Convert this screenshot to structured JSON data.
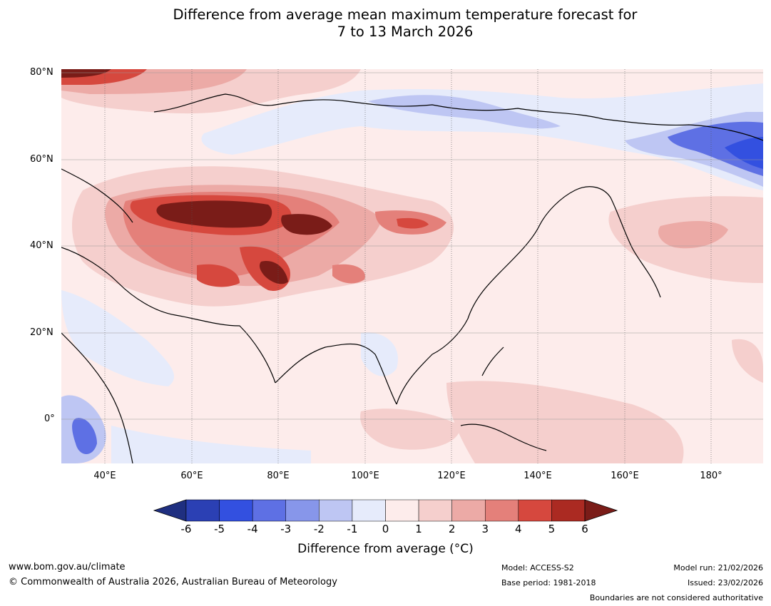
{
  "title_line1": "Difference from average mean maximum temperature forecast for",
  "title_line2": "7 to 13 March 2026",
  "lat_labels": [
    "80°N",
    "60°N",
    "40°N",
    "20°N",
    "0°"
  ],
  "lon_labels": [
    "40°E",
    "60°E",
    "80°E",
    "100°E",
    "120°E",
    "140°E",
    "160°E",
    "180°"
  ],
  "colorbar": {
    "ticks": [
      "-6",
      "-5",
      "-4",
      "-3",
      "-2",
      "-1",
      "0",
      "1",
      "2",
      "3",
      "4",
      "5",
      "6"
    ],
    "colors": [
      "#1f2f80",
      "#2b40b4",
      "#3350e0",
      "#5e70e4",
      "#8796ea",
      "#bec6f3",
      "#e6ebfb",
      "#fdeceb",
      "#f5cfcd",
      "#ecaaa6",
      "#e4807a",
      "#d6483e",
      "#ab2a22",
      "#7a1c18"
    ],
    "label": "Difference from average (°C)"
  },
  "footer": {
    "url": "www.bom.gov.au/climate",
    "copyright": "© Commonwealth of Australia 2026, Australian Bureau of Meteorology",
    "model": "Model: ACCESS-S2",
    "base_period": "Base period: 1981-2018",
    "model_run": "Model run: 21/02/2026",
    "issued": "Issued: 23/02/2026",
    "disclaimer": "Boundaries are not considered authoritative"
  }
}
